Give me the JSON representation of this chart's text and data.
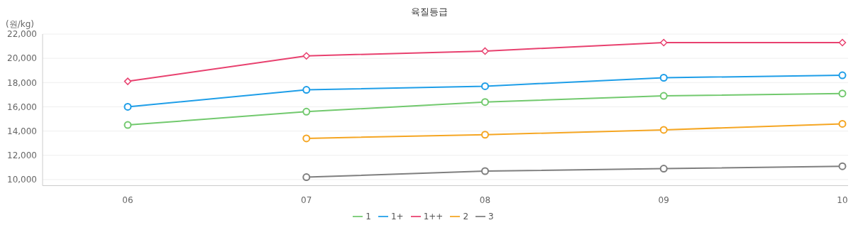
{
  "chart_data": {
    "type": "line",
    "title": "육질등급",
    "ylabel": "(원/kg)",
    "categories": [
      "06",
      "07",
      "08",
      "09",
      "10"
    ],
    "series": [
      {
        "name": "1++",
        "color": "#e8416f",
        "marker": "diamond",
        "values": [
          18100,
          20200,
          20600,
          21300,
          21300
        ]
      },
      {
        "name": "1+",
        "color": "#1e9ee8",
        "marker": "circle",
        "values": [
          16000,
          17400,
          17700,
          18400,
          18600
        ]
      },
      {
        "name": "1",
        "color": "#72c96e",
        "marker": "circle",
        "values": [
          14500,
          15600,
          16400,
          16900,
          17100
        ]
      },
      {
        "name": "2",
        "color": "#f5a623",
        "marker": "circle",
        "values": [
          null,
          13400,
          13700,
          14100,
          14600
        ]
      },
      {
        "name": "3",
        "color": "#7f7f7f",
        "marker": "circle",
        "values": [
          null,
          10200,
          10700,
          10900,
          11100
        ]
      }
    ],
    "ylim": [
      9500,
      22000
    ],
    "yticks": [
      {
        "value": 10000,
        "label": "10,000"
      },
      {
        "value": 12000,
        "label": "12,000"
      },
      {
        "value": 14000,
        "label": "14,000"
      },
      {
        "value": 16000,
        "label": "16,000"
      },
      {
        "value": 18000,
        "label": "18,000"
      },
      {
        "value": 20000,
        "label": "20,000"
      },
      {
        "value": 22000,
        "label": "22,000"
      }
    ],
    "grid": "y",
    "legend": "bottom",
    "line_style": "solid"
  }
}
